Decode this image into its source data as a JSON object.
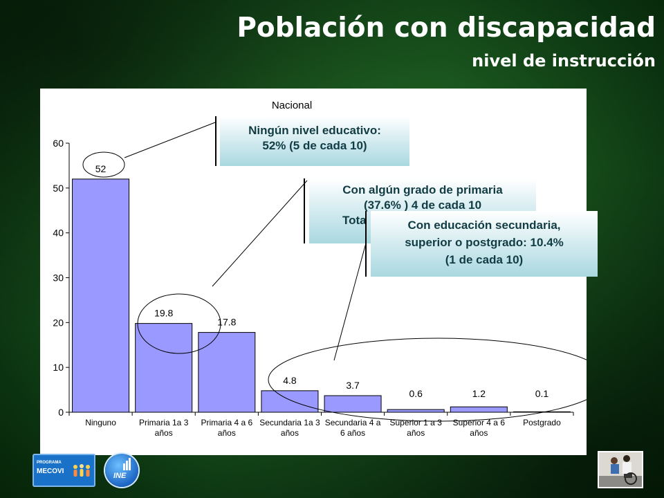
{
  "header": {
    "title": "Población con discapacidad",
    "subtitle": "nivel de instrucción"
  },
  "chart_data": {
    "type": "bar",
    "title": "Nacional",
    "xlabel": "",
    "ylabel": "",
    "ylim": [
      0,
      60
    ],
    "yticks": [
      "0",
      "10",
      "20",
      "30",
      "40",
      "50",
      "60"
    ],
    "categories": [
      [
        "Ninguno"
      ],
      [
        "Primaria 1a 3",
        "años"
      ],
      [
        "Primaria 4 a 6",
        "años"
      ],
      [
        "Secundaria 1a 3",
        "años"
      ],
      [
        "Secundaria 4 a",
        "6 años"
      ],
      [
        "Superior 1 a 3",
        "años"
      ],
      [
        "Superior 4 a 6",
        "años"
      ],
      [
        "Postgrado"
      ]
    ],
    "values": [
      52,
      19.8,
      17.8,
      4.8,
      3.7,
      0.6,
      1.2,
      0.1
    ],
    "data_labels": [
      "52",
      "19.8",
      "17.8",
      "4.8",
      "3.7",
      "0.6",
      "1.2",
      "0.1"
    ],
    "bar_color": "#9999ff",
    "legend": "none",
    "grid": false
  },
  "callouts": {
    "ninguno": {
      "lines": [
        "Ningún nivel educativo:",
        "52%  (5 de cada 10)"
      ]
    },
    "primaria": {
      "lines": [
        "Con algún grado de primaria",
        "(37.6% ) 4 de cada 10",
        "Tota"
      ]
    },
    "secundaria": {
      "lines": [
        "Con educación secundaria,",
        "superior o postgrado:  10.4%",
        "(1 de cada 10)"
      ]
    }
  },
  "logos": {
    "mecovi_small": "PROGRAMA",
    "mecovi_big": "MECOVI",
    "ine": "INE"
  }
}
